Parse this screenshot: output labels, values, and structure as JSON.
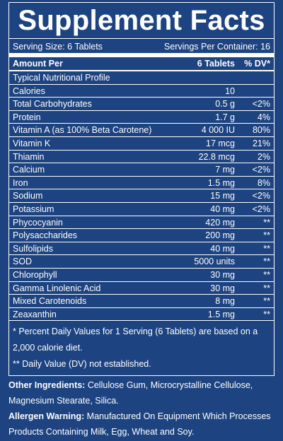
{
  "title": "Supplement Facts",
  "serving_size": "Serving Size: 6 Tablets",
  "servings_per_container": "Servings Per Container: 16",
  "header": {
    "name": "Amount Per",
    "amount": "6 Tablets",
    "dv": "% DV*"
  },
  "rows": [
    {
      "name": "Typical Nutritional Profile"
    },
    {
      "name": "Calories",
      "amount": "10"
    },
    {
      "name": "Total Carbohydrates",
      "amount": "0.5 g",
      "dv": "<2%"
    },
    {
      "name": "Protein",
      "amount": "1.7 g",
      "dv": "4%"
    },
    {
      "name": "Vitamin A (as 100% Beta Carotene)",
      "amount": "4 000 IU",
      "dv": "80%"
    },
    {
      "name": "Vitamin K",
      "amount": "17 mcg",
      "dv": "21%"
    },
    {
      "name": "Thiamin",
      "amount": "22.8 mcg",
      "dv": "2%"
    },
    {
      "name": "Calcium",
      "amount": "7 mg",
      "dv": "<2%"
    },
    {
      "name": "Iron",
      "amount": "1.5 mg",
      "dv": "8%"
    },
    {
      "name": "Sodium",
      "amount": "15 mg",
      "dv": "<2%"
    },
    {
      "name": "Potassium",
      "amount": "40 mg",
      "dv": "<2%"
    },
    {
      "name": "Phycocyanin",
      "amount": "420 mg",
      "dv": "**"
    },
    {
      "name": "Polysaccharides",
      "amount": "200 mg",
      "dv": "**"
    },
    {
      "name": "Sulfolipids",
      "amount": "40 mg",
      "dv": "**"
    },
    {
      "name": "SOD",
      "amount": "5000 units",
      "dv": "**"
    },
    {
      "name": "Chlorophyll",
      "amount": "30 mg",
      "dv": "**"
    },
    {
      "name": "Gamma Linolenic Acid",
      "amount": "30 mg",
      "dv": "**"
    },
    {
      "name": "Mixed Carotenoids",
      "amount": "8 mg",
      "dv": "**"
    },
    {
      "name": "Zeaxanthin",
      "amount": "1.5 mg",
      "dv": "**"
    }
  ],
  "footnotes": [
    "* Percent Daily Values for 1 Serving (6 Tablets) are based on a 2,000 calorie diet.",
    "** Daily Value (DV) not established."
  ],
  "other_ingredients": {
    "label": "Other Ingredients:",
    "text": "Cellulose Gum, Microcrystalline Cellulose, Magnesium Stearate, Silica."
  },
  "allergen": {
    "label": "Allergen Warning:",
    "text": "Manufactured On Equipment Which Processes Products Containing Milk, Egg, Wheat and Soy."
  }
}
